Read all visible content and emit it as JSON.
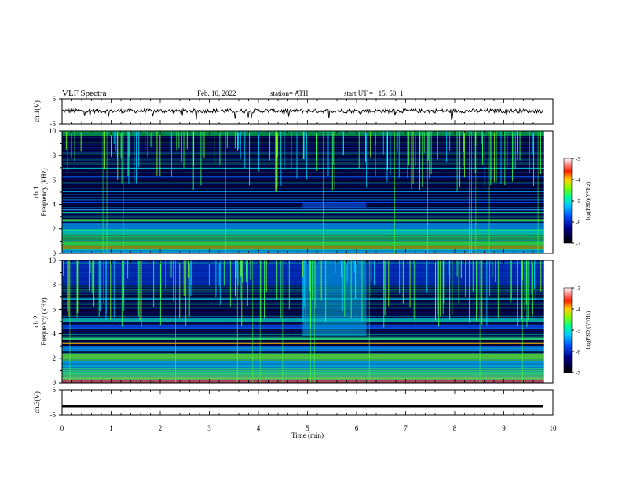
{
  "header": {
    "title": "VLF Spectra",
    "date": "Feb. 10, 2022",
    "station": "station= ATH",
    "start_ut": "start UT =   15: 50: 1"
  },
  "colorbar": {
    "label": "log(PSD)(V²/Hz)",
    "min": -7,
    "max": -3,
    "ticks": [
      "-3",
      "-4",
      "-5",
      "-6",
      "-7"
    ],
    "colormap": [
      "#000030",
      "#00007a",
      "#0000ff",
      "#0060ff",
      "#00c0ff",
      "#00ffc0",
      "#40ff40",
      "#c0ff00",
      "#ffc000",
      "#ff2000",
      "#c00000",
      "#ffffff"
    ]
  },
  "chart_data": [
    {
      "id": "ch1-waveform",
      "type": "line",
      "ylabel": "ch.1(V)",
      "ylim": [
        -5,
        5
      ],
      "yticks": [
        "5",
        "-5"
      ],
      "xlim": [
        0,
        10
      ],
      "description_values": "noisy baseline near 0 V with small dips",
      "baseline": 0.2
    },
    {
      "id": "ch1-spectrogram",
      "type": "heatmap",
      "ylabel": "ch.1\nFrequency (kHz)",
      "ylim": [
        0,
        10
      ],
      "yticks": [
        "10",
        "8",
        "6",
        "4",
        "2",
        "0"
      ],
      "xlim": [
        0,
        10
      ]
    },
    {
      "id": "ch2-spectrogram",
      "type": "heatmap",
      "ylabel": "ch.2\nFrequency (kHz)",
      "ylim": [
        0,
        10
      ],
      "yticks": [
        "10",
        "8",
        "6",
        "4",
        "2",
        "0"
      ],
      "xlim": [
        0,
        10
      ]
    },
    {
      "id": "ch3-waveform",
      "type": "line",
      "ylabel": "ch.3(V)",
      "ylim": [
        -5,
        5
      ],
      "yticks": [
        "5",
        "-5"
      ],
      "xlim": [
        0,
        10
      ],
      "baseline": -1.5
    }
  ],
  "xaxis": {
    "label": "Time (min)",
    "ticks": [
      "0",
      "1",
      "2",
      "3",
      "4",
      "5",
      "6",
      "7",
      "8",
      "9",
      "10"
    ]
  },
  "colors": {
    "black_line": "#000000"
  }
}
